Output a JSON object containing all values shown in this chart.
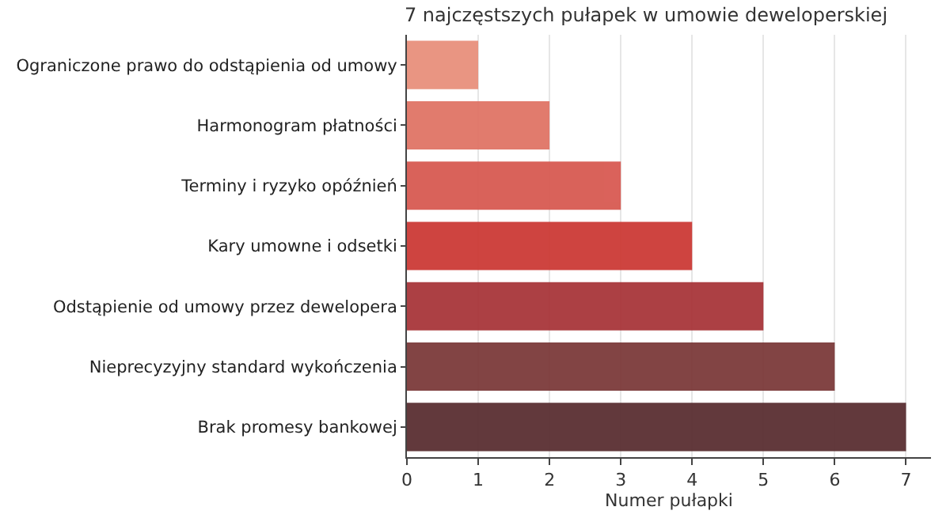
{
  "chart_data": {
    "type": "bar",
    "orientation": "horizontal",
    "title": "7 najczęstszych pułapek w umowie deweloperskiej",
    "xlabel": "Numer pułapki",
    "categories": [
      "Ograniczone prawo do odstąpienia od umowy",
      "Harmonogram płatności",
      "Terminy i ryzyko opóźnień",
      "Kary umowne i odsetki",
      "Odstąpienie od umowy przez dewelopera",
      "Nieprecyzyjny standard wykończenia",
      "Brak promesy bankowej"
    ],
    "values": [
      1,
      2,
      3,
      4,
      5,
      6,
      7
    ],
    "colors": [
      "#e8907c",
      "#e07466",
      "#d85a52",
      "#cc3b36",
      "#a8363a",
      "#7c3a3a",
      "#5a2e32"
    ],
    "xlim": [
      0,
      7.35
    ],
    "xticks": [
      0,
      1,
      2,
      3,
      4,
      5,
      6,
      7
    ],
    "grid": "x"
  }
}
